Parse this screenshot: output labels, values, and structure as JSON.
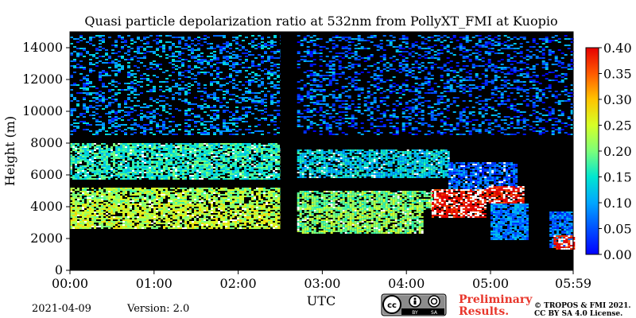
{
  "chart_data": {
    "type": "heatmap",
    "title": "Quasi particle depolarization ratio at 532nm from PollyXT_FMI at Kuopio",
    "xlabel": "UTC",
    "ylabel": "Height (m)",
    "x_tick_labels": [
      "00:00",
      "01:00",
      "02:00",
      "03:00",
      "04:00",
      "05:00",
      "05:59"
    ],
    "x_tick_hours": [
      0,
      1,
      2,
      3,
      4,
      5,
      5.983
    ],
    "xlim_hours": [
      0,
      5.983
    ],
    "y_ticks": [
      0,
      2000,
      4000,
      6000,
      8000,
      10000,
      12000,
      14000
    ],
    "ylim": [
      0,
      15000
    ],
    "colorbar": {
      "ticks": [
        0.0,
        0.05,
        0.1,
        0.15,
        0.2,
        0.25,
        0.3,
        0.35,
        0.4
      ],
      "tick_labels": [
        "0.00",
        "0.05",
        "0.10",
        "0.15",
        "0.20",
        "0.25",
        "0.30",
        "0.35",
        "0.40"
      ],
      "range": [
        0.0,
        0.4
      ],
      "colormap": "jet"
    },
    "features": [
      {
        "kind": "noise",
        "t": [
          0.0,
          2.5
        ],
        "h": [
          8500,
          14800
        ],
        "value": 0.08
      },
      {
        "kind": "noise",
        "t": [
          2.7,
          5.98
        ],
        "h": [
          8500,
          14800
        ],
        "value": 0.06
      },
      {
        "kind": "layer",
        "t": [
          0.0,
          2.5
        ],
        "h": [
          5700,
          8000
        ],
        "value": 0.16
      },
      {
        "kind": "layer",
        "t": [
          2.7,
          4.5
        ],
        "h": [
          5800,
          7600
        ],
        "value": 0.13
      },
      {
        "kind": "layer",
        "t": [
          4.5,
          5.3
        ],
        "h": [
          5000,
          6800
        ],
        "value": 0.06
      },
      {
        "kind": "layer",
        "t": [
          0.0,
          2.5
        ],
        "h": [
          4200,
          5200
        ],
        "value": 0.22
      },
      {
        "kind": "layer",
        "t": [
          2.7,
          4.3
        ],
        "h": [
          3800,
          5000
        ],
        "value": 0.2
      },
      {
        "kind": "layer",
        "t": [
          0.0,
          2.5
        ],
        "h": [
          2600,
          4200
        ],
        "value": 0.24
      },
      {
        "kind": "layer",
        "t": [
          2.7,
          4.2
        ],
        "h": [
          2300,
          4000
        ],
        "value": 0.21
      },
      {
        "kind": "cloud",
        "t": [
          4.3,
          4.95
        ],
        "h": [
          3300,
          5100
        ],
        "value": 0.4
      },
      {
        "kind": "cloud",
        "t": [
          4.95,
          5.4
        ],
        "h": [
          4200,
          5300
        ],
        "value": 0.4
      },
      {
        "kind": "fall",
        "t": [
          5.0,
          5.45
        ],
        "h": [
          1900,
          4200
        ],
        "value": 0.08
      },
      {
        "kind": "fall",
        "t": [
          5.7,
          5.98
        ],
        "h": [
          1400,
          3700
        ],
        "value": 0.07
      },
      {
        "kind": "cloud",
        "t": [
          5.75,
          5.98
        ],
        "h": [
          1300,
          2200
        ],
        "value": 0.4
      },
      {
        "kind": "gap",
        "t": [
          2.5,
          2.67
        ],
        "h": [
          0,
          15000
        ],
        "value": null
      }
    ],
    "grid": false
  },
  "footer": {
    "date": "2021-04-09",
    "version": "Version: 2.0",
    "license_badge": {
      "icon": "cc-by-sa-icon",
      "labels": [
        "BY",
        "SA"
      ]
    },
    "preliminary_line1": "Preliminary",
    "preliminary_line2": "Results.",
    "copyright_line1": "© TROPOS & FMI 2021.",
    "copyright_line2": "CC BY SA 4.0 License."
  }
}
